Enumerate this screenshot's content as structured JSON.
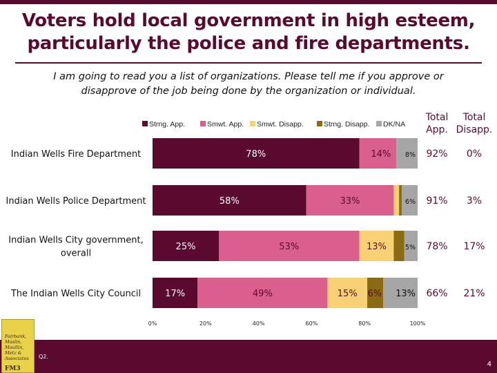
{
  "slide": {
    "title_line1": "Voters hold local government in high esteem,",
    "title_line2": "particularly the police and fire departments.",
    "question_line1": "I am going to read you a list of organizations.  Please tell me if you approve or",
    "question_line2": "disapprove of the job being done by the organization or individual.",
    "question_ref": "Q2.",
    "page_number": "4",
    "logo_text": [
      "Fairbank,",
      "Maslin,",
      "Maullin,",
      "Metz &",
      "Associates"
    ],
    "logo_mark": "FM3"
  },
  "colors": {
    "brand": "#5a0a2e",
    "strong_approve": "#5a0a2e",
    "somewhat_approve": "#d95f8c",
    "somewhat_disapprove": "#f7d173",
    "strong_disapprove": "#8a6a12",
    "dk_na": "#a6a6a6"
  },
  "chart_data": {
    "type": "bar",
    "orientation": "horizontal",
    "stacked": true,
    "categories": [
      "Indian Wells Fire Department",
      "Indian Wells Police Department",
      "Indian Wells City government, overall",
      "The Indian Wells City Council"
    ],
    "series": [
      {
        "name": "Strng. App.",
        "values": [
          78,
          58,
          25,
          17
        ],
        "labels": [
          "78%",
          "58%",
          "25%",
          "17%"
        ]
      },
      {
        "name": "Smwt. App.",
        "values": [
          14,
          33,
          53,
          49
        ],
        "labels": [
          "14%",
          "33%",
          "53%",
          "49%"
        ]
      },
      {
        "name": "Smwt. Disapp.",
        "values": [
          0,
          2,
          13,
          15
        ],
        "labels": [
          "",
          "",
          "13%",
          "15%"
        ]
      },
      {
        "name": "Strng. Disapp.",
        "values": [
          0,
          1,
          4,
          6
        ],
        "labels": [
          "",
          "",
          "",
          "6%"
        ]
      },
      {
        "name": "DK/NA",
        "values": [
          8,
          6,
          5,
          13
        ],
        "labels": [
          "8%",
          "6%",
          "5%",
          "13%"
        ]
      }
    ],
    "totals_header": {
      "approve_line1": "Total",
      "approve_line2": "App.",
      "disapprove_line1": "Total",
      "disapprove_line2": "Disapp."
    },
    "totals": [
      {
        "approve": "92%",
        "disapprove": "0%"
      },
      {
        "approve": "91%",
        "disapprove": "3%"
      },
      {
        "approve": "78%",
        "disapprove": "17%"
      },
      {
        "approve": "66%",
        "disapprove": "21%"
      }
    ],
    "xlim": [
      0,
      100
    ],
    "x_ticks": [
      "0%",
      "20%",
      "40%",
      "60%",
      "80%",
      "100%"
    ],
    "legend_position": "top",
    "grid": false
  }
}
